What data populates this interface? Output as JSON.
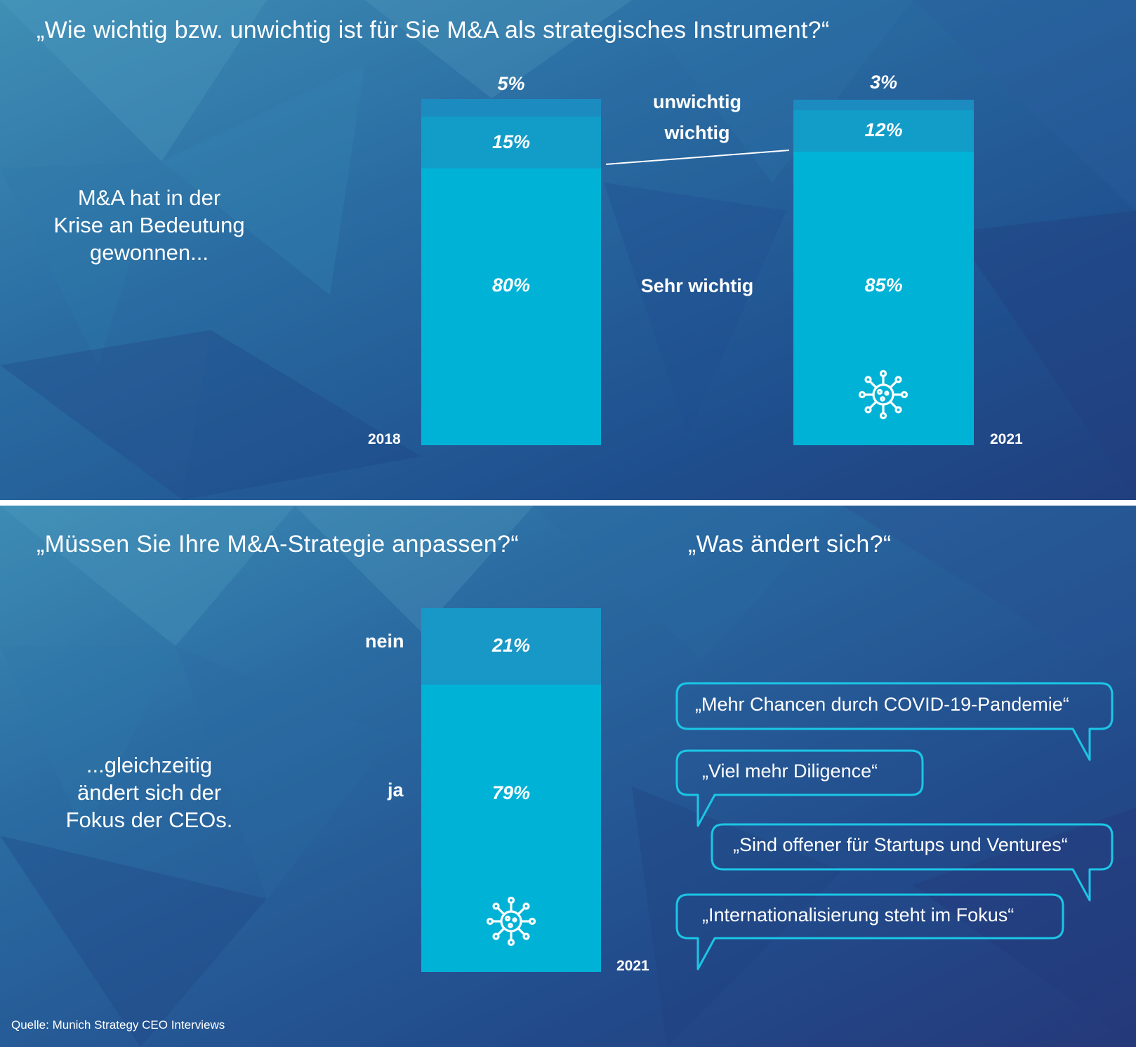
{
  "top": {
    "question": "„Wie wichtig bzw. unwichtig ist für Sie M&A als strategisches Instrument?“",
    "note_lines": [
      "M&A hat  in der",
      "Krise an Bedeutung",
      "gewonnen..."
    ]
  },
  "bottom": {
    "question_left": "„Müssen Sie Ihre M&A-Strategie anpassen?“",
    "question_right": "„Was ändert sich?“",
    "note_lines": [
      "...gleichzeitig",
      "ändert sich der",
      "Fokus der CEOs."
    ],
    "bubbles": [
      "„Mehr Chancen durch COVID-19-Pandemie“",
      "„Viel mehr Diligence“",
      "„Sind offener für Startups und Ventures“",
      "„Internationalisierung steht im Fokus“"
    ]
  },
  "source": "Quelle: Munich Strategy CEO Interviews",
  "colors": {
    "sehr_wichtig": "#00b3d6",
    "wichtig": "#129dc9",
    "unwichtig": "#1b8bc0",
    "ja": "#00b3d6",
    "nein": "#1898c6",
    "bubble_border": "#1bc6e6"
  },
  "icons": {
    "virus": "virus-icon"
  },
  "chart_data": [
    {
      "type": "bar",
      "stacked": true,
      "categories": [
        "2018",
        "2021"
      ],
      "series": [
        {
          "name": "Sehr wichtig",
          "values": [
            80,
            85
          ]
        },
        {
          "name": "wichtig",
          "values": [
            15,
            12
          ]
        },
        {
          "name": "unwichtig",
          "values": [
            5,
            3
          ]
        }
      ],
      "labels": {
        "2018": [
          "80%",
          "15%",
          "5%"
        ],
        "2021": [
          "85%",
          "12%",
          "3%"
        ]
      },
      "title": "„Wie wichtig bzw. unwichtig ist für Sie M&A als strategisches Instrument?“",
      "ylim": [
        0,
        100
      ]
    },
    {
      "type": "bar",
      "stacked": true,
      "categories": [
        "2021"
      ],
      "series": [
        {
          "name": "ja",
          "values": [
            79
          ]
        },
        {
          "name": "nein",
          "values": [
            21
          ]
        }
      ],
      "labels": {
        "2021": [
          "79%",
          "21%"
        ]
      },
      "title": "„Müssen Sie Ihre M&A-Strategie anpassen?“",
      "ylim": [
        0,
        100
      ]
    }
  ]
}
